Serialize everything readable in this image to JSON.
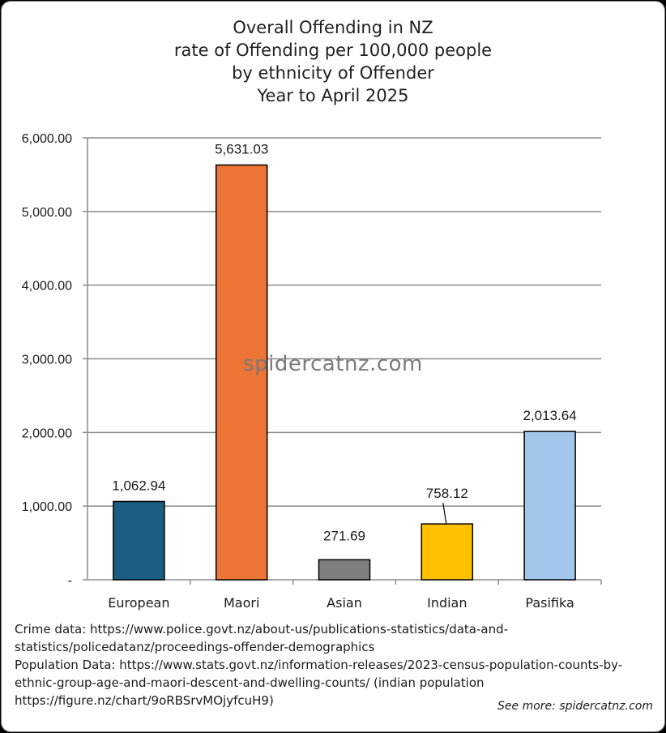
{
  "chart_data": {
    "type": "bar",
    "title": "Overall Offending in NZ",
    "title_lines": [
      "Overall Offending in NZ",
      "rate of Offending per 100,000 people",
      "by ethnicity of Offender",
      "Year to April 2025"
    ],
    "categories": [
      "European",
      "Maori",
      "Asian",
      "Indian",
      "Pasifika"
    ],
    "values": [
      1062.94,
      5631.03,
      271.69,
      758.12,
      2013.64
    ],
    "data_labels": [
      "1,062.94",
      "5,631.03",
      "271.69",
      "758.12",
      "2,013.64"
    ],
    "colors": [
      "#1a5e82",
      "#ec7434",
      "#7f7f7f",
      "#ffc000",
      "#a3c7eb"
    ],
    "ylim": [
      0,
      6000
    ],
    "yticks": [
      0,
      1000,
      2000,
      3000,
      4000,
      5000,
      6000
    ],
    "ytick_labels": [
      "-",
      "1,000.00",
      "2,000.00",
      "3,000.00",
      "4,000.00",
      "5,000.00",
      "6,000.00"
    ],
    "xlabel": "",
    "ylabel": "",
    "grid": true,
    "legend": "none"
  },
  "watermark": "spidercatnz.com",
  "sources": {
    "lines": [
      "Crime data: https://www.police.govt.nz/about-us/publications-statistics/data-and-",
      "statistics/policedatanz/proceedings-offender-demographics",
      "Population Data: https://www.stats.govt.nz/information-releases/2023-census-population-counts-by-",
      "ethnic-group-age-and-maori-descent-and-dwelling-counts/ (indian population",
      "https://figure.nz/chart/9oRBSrvMOjyfcuH9)"
    ]
  },
  "see_more": "See more: spidercatnz.com"
}
